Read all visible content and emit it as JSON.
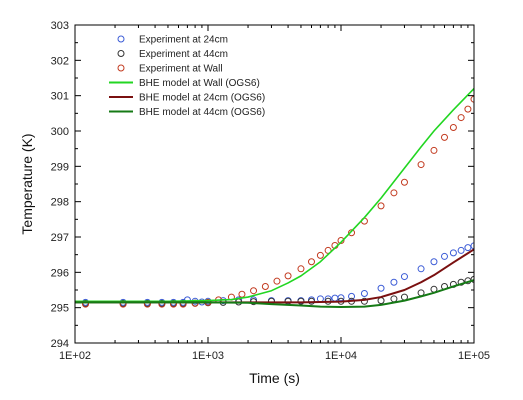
{
  "chart_data": {
    "type": "scatter",
    "title": "",
    "xlabel": "Time (s)",
    "ylabel": "Temperature (K)",
    "x_scale": "log",
    "xlim": [
      100,
      100000
    ],
    "ylim": [
      294,
      303
    ],
    "x_ticks": [
      100,
      1000,
      10000,
      100000
    ],
    "x_tick_labels": [
      "1E+02",
      "1E+03",
      "1E+04",
      "1E+05"
    ],
    "y_ticks": [
      294,
      295,
      296,
      297,
      298,
      299,
      300,
      301,
      302,
      303
    ],
    "y_tick_labels": [
      "294",
      "295",
      "296",
      "297",
      "298",
      "299",
      "300",
      "301",
      "302",
      "303"
    ],
    "grid": false,
    "legend_position": "top-left",
    "series": [
      {
        "name": "Experiment at 24cm",
        "kind": "markers",
        "color": "#3b5bd6",
        "x": [
          120,
          230,
          350,
          450,
          550,
          650,
          700,
          800,
          900,
          1000,
          1300,
          1700,
          2200,
          3000,
          4000,
          5000,
          6000,
          7000,
          8000,
          9000,
          10000,
          12000,
          15000,
          20000,
          25000,
          30000,
          40000,
          50000,
          60000,
          70000,
          80000,
          90000,
          100000
        ],
        "y": [
          295.15,
          295.15,
          295.15,
          295.15,
          295.15,
          295.15,
          295.22,
          295.18,
          295.16,
          295.18,
          295.2,
          295.22,
          295.22,
          295.2,
          295.2,
          295.2,
          295.22,
          295.25,
          295.25,
          295.27,
          295.28,
          295.32,
          295.4,
          295.55,
          295.72,
          295.88,
          296.1,
          296.3,
          296.45,
          296.55,
          296.62,
          296.7,
          296.75
        ]
      },
      {
        "name": "Experiment at 44cm",
        "kind": "markers",
        "color": "#333333",
        "x": [
          120,
          230,
          350,
          450,
          550,
          650,
          800,
          1000,
          1300,
          1700,
          2200,
          3000,
          4000,
          5000,
          6000,
          8000,
          10000,
          12000,
          15000,
          20000,
          25000,
          30000,
          40000,
          50000,
          60000,
          70000,
          80000,
          90000,
          100000
        ],
        "y": [
          295.12,
          295.12,
          295.12,
          295.12,
          295.12,
          295.12,
          295.13,
          295.14,
          295.15,
          295.16,
          295.17,
          295.18,
          295.18,
          295.18,
          295.18,
          295.18,
          295.18,
          295.18,
          295.18,
          295.2,
          295.25,
          295.3,
          295.42,
          295.52,
          295.6,
          295.66,
          295.72,
          295.76,
          295.8
        ]
      },
      {
        "name": "Experiment at Wall",
        "kind": "markers",
        "color": "#c23a1f",
        "x": [
          120,
          230,
          350,
          450,
          550,
          650,
          800,
          1000,
          1200,
          1500,
          1800,
          2200,
          2700,
          3300,
          4000,
          5000,
          6000,
          7000,
          8000,
          9000,
          10000,
          12000,
          15000,
          20000,
          25000,
          30000,
          40000,
          50000,
          60000,
          70000,
          80000,
          90000,
          100000
        ],
        "y": [
          295.1,
          295.1,
          295.1,
          295.1,
          295.1,
          295.1,
          295.12,
          295.15,
          295.22,
          295.3,
          295.38,
          295.48,
          295.6,
          295.75,
          295.9,
          296.1,
          296.3,
          296.48,
          296.62,
          296.76,
          296.9,
          297.12,
          297.45,
          297.88,
          298.25,
          298.55,
          299.05,
          299.45,
          299.82,
          300.1,
          300.38,
          300.62,
          300.9
        ]
      },
      {
        "name": "BHE model at Wall (OGS6)",
        "kind": "line",
        "color": "#22d622",
        "x": [
          100,
          200,
          500,
          1000,
          1500,
          2000,
          3000,
          4000,
          5000,
          7000,
          10000,
          15000,
          20000,
          30000,
          40000,
          50000,
          70000,
          100000
        ],
        "y": [
          295.18,
          295.18,
          295.18,
          295.2,
          295.23,
          295.3,
          295.48,
          295.7,
          295.9,
          296.3,
          296.85,
          297.55,
          298.1,
          298.95,
          299.55,
          300.0,
          300.6,
          301.2
        ]
      },
      {
        "name": "BHE model at 24cm (OGS6)",
        "kind": "line",
        "color": "#7a1010",
        "x": [
          100,
          200,
          500,
          1000,
          2000,
          3000,
          5000,
          7000,
          10000,
          15000,
          20000,
          30000,
          40000,
          50000,
          70000,
          100000
        ],
        "y": [
          295.15,
          295.15,
          295.15,
          295.15,
          295.15,
          295.15,
          295.15,
          295.16,
          295.17,
          295.22,
          295.3,
          295.5,
          295.72,
          295.92,
          296.28,
          296.65
        ]
      },
      {
        "name": "BHE model at 44cm (OGS6)",
        "kind": "line",
        "color": "#157a15",
        "x": [
          100,
          200,
          500,
          1000,
          2000,
          3000,
          5000,
          7000,
          10000,
          15000,
          20000,
          30000,
          40000,
          50000,
          70000,
          100000
        ],
        "y": [
          295.15,
          295.15,
          295.15,
          295.15,
          295.14,
          295.1,
          295.06,
          295.03,
          295.02,
          295.03,
          295.08,
          295.2,
          295.32,
          295.42,
          295.6,
          295.78
        ]
      }
    ]
  }
}
